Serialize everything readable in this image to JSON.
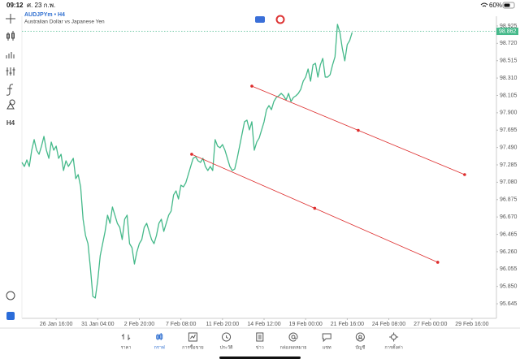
{
  "status_bar": {
    "time": "09:12",
    "date": "ศ. 23 ก.พ.",
    "battery": "60%"
  },
  "toolbar": {
    "timeframe": "H4"
  },
  "tabs": [
    "ราคา",
    "กราฟ",
    "การซื้อขาย",
    "ประวัติ",
    "ข่าว",
    "กล่องจดหมาย",
    "แชท",
    "บัญชี",
    "การตั้งค่า"
  ],
  "active_tab": 1,
  "chart_data": {
    "type": "line",
    "symbol": "AUDJPYm • H4",
    "description": "Australian Dollar vs Japanese Yen",
    "color": "#45b98a",
    "last_price": 98.862,
    "values": [
      97.314,
      97.266,
      97.343,
      97.266,
      97.458,
      97.583,
      97.458,
      97.41,
      97.506,
      97.621,
      97.458,
      97.362,
      97.554,
      97.458,
      97.506,
      97.362,
      97.41,
      97.218,
      97.333,
      97.266,
      97.314,
      97.362,
      97.122,
      97.17,
      97.025,
      96.643,
      96.451,
      96.355,
      96.067,
      95.732,
      95.713,
      95.923,
      96.211,
      96.355,
      96.499,
      96.691,
      96.595,
      96.787,
      96.691,
      96.595,
      96.547,
      96.403,
      96.643,
      96.691,
      96.355,
      96.307,
      96.114,
      96.259,
      96.355,
      96.403,
      96.547,
      96.595,
      96.499,
      96.403,
      96.355,
      96.451,
      96.595,
      96.643,
      96.499,
      96.595,
      96.691,
      96.739,
      96.93,
      96.978,
      96.882,
      97.045,
      97.025,
      97.074,
      97.17,
      97.266,
      97.362,
      97.381,
      97.333,
      97.314,
      97.362,
      97.266,
      97.218,
      97.266,
      97.218,
      97.583,
      97.506,
      97.487,
      97.525,
      97.458,
      97.362,
      97.266,
      97.218,
      97.237,
      97.362,
      97.506,
      97.65,
      97.794,
      97.813,
      97.698,
      97.794,
      97.458,
      97.554,
      97.602,
      97.698,
      97.794,
      97.937,
      97.985,
      97.937,
      98.033,
      98.081,
      98.1,
      98.129,
      98.1,
      98.052,
      98.129,
      98.033,
      98.081,
      98.1,
      98.129,
      98.177,
      98.273,
      98.321,
      98.417,
      98.273,
      98.465,
      98.484,
      98.321,
      98.465,
      98.542,
      98.321,
      98.321,
      98.35,
      98.465,
      98.561,
      98.944,
      98.848,
      98.657,
      98.513,
      98.705,
      98.753,
      98.848
    ],
    "trendlines": [
      {
        "color": "#dd2c2c",
        "x": [
          94,
          181
        ],
        "values": [
          98.215,
          97.17
        ]
      },
      {
        "color": "#dd2c2c",
        "x": [
          69.4,
          170
        ],
        "values": [
          97.41,
          96.135
        ]
      }
    ],
    "xlim": [
      0,
      194
    ],
    "xticks": [
      {
        "value": 14,
        "label": "26 Jan 16:00"
      },
      {
        "value": 31,
        "label": "31 Jan 04:00"
      },
      {
        "value": 48,
        "label": "2 Feb 20:00"
      },
      {
        "value": 65,
        "label": "7 Feb 08:00"
      },
      {
        "value": 82,
        "label": "11 Feb 20:00"
      },
      {
        "value": 99,
        "label": "14 Feb 12:00"
      },
      {
        "value": 116,
        "label": "19 Feb 00:00"
      },
      {
        "value": 133,
        "label": "21 Feb 16:00"
      },
      {
        "value": 150,
        "label": "24 Feb 08:00"
      },
      {
        "value": 167,
        "label": "27 Feb 00:00"
      },
      {
        "value": 184,
        "label": "29 Feb 16:00"
      }
    ],
    "ylim": [
      95.473,
      98.963
    ],
    "yticks": [
      {
        "value": 98.925,
        "label": "98.925"
      },
      {
        "value": 98.72,
        "label": "98.720"
      },
      {
        "value": 98.515,
        "label": "98.515"
      },
      {
        "value": 98.31,
        "label": "98.310"
      },
      {
        "value": 98.105,
        "label": "98.105"
      },
      {
        "value": 97.9,
        "label": "97.900"
      },
      {
        "value": 97.695,
        "label": "97.695"
      },
      {
        "value": 97.49,
        "label": "97.490"
      },
      {
        "value": 97.285,
        "label": "97.285"
      },
      {
        "value": 97.08,
        "label": "97.080"
      },
      {
        "value": 96.875,
        "label": "96.875"
      },
      {
        "value": 96.67,
        "label": "96.670"
      },
      {
        "value": 96.465,
        "label": "96.465"
      },
      {
        "value": 96.26,
        "label": "96.260"
      },
      {
        "value": 96.055,
        "label": "96.055"
      },
      {
        "value": 95.85,
        "label": "95.850"
      },
      {
        "value": 95.645,
        "label": "95.645"
      }
    ]
  }
}
